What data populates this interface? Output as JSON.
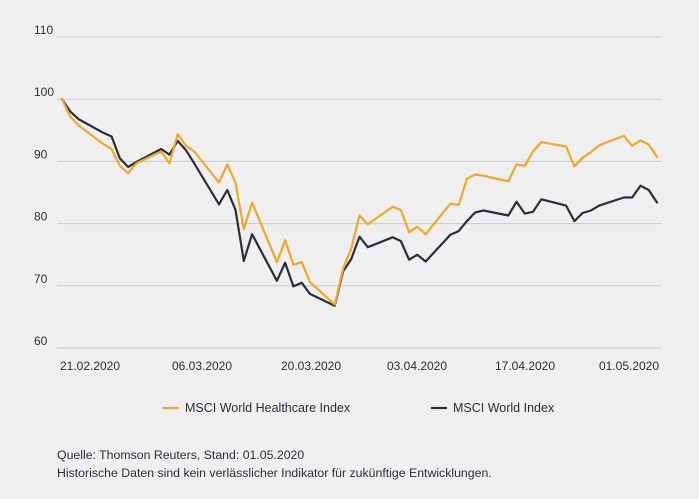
{
  "chart_data": {
    "type": "line",
    "title": "",
    "xlabel": "",
    "ylabel": "",
    "ylim": [
      60,
      110
    ],
    "yticks": [
      60,
      70,
      80,
      90,
      100,
      110
    ],
    "xticks": [
      "21.02.2020",
      "06.03.2020",
      "20.03.2020",
      "03.04.2020",
      "17.04.2020",
      "01.05.2020"
    ],
    "grid": "horizontal",
    "legend_position": "bottom",
    "x": [
      "2020-02-19",
      "2020-02-20",
      "2020-02-21",
      "2020-02-24",
      "2020-02-25",
      "2020-02-26",
      "2020-02-27",
      "2020-02-28",
      "2020-03-02",
      "2020-03-03",
      "2020-03-04",
      "2020-03-05",
      "2020-03-06",
      "2020-03-09",
      "2020-03-10",
      "2020-03-11",
      "2020-03-12",
      "2020-03-13",
      "2020-03-16",
      "2020-03-17",
      "2020-03-18",
      "2020-03-19",
      "2020-03-20",
      "2020-03-23",
      "2020-03-24",
      "2020-03-25",
      "2020-03-26",
      "2020-03-27",
      "2020-03-30",
      "2020-03-31",
      "2020-04-01",
      "2020-04-02",
      "2020-04-03",
      "2020-04-06",
      "2020-04-07",
      "2020-04-08",
      "2020-04-09",
      "2020-04-10",
      "2020-04-13",
      "2020-04-14",
      "2020-04-15",
      "2020-04-16",
      "2020-04-17",
      "2020-04-20",
      "2020-04-21",
      "2020-04-22",
      "2020-04-23",
      "2020-04-24",
      "2020-04-27",
      "2020-04-28",
      "2020-04-29",
      "2020-04-30",
      "2020-05-01"
    ],
    "series": [
      {
        "name": "MSCI World Healthcare Index",
        "color": "#f0a828",
        "values": [
          100,
          97.2,
          95.8,
          92.8,
          92.0,
          89.3,
          88.1,
          89.7,
          91.6,
          89.7,
          94.4,
          92.5,
          91.6,
          86.6,
          89.5,
          86.6,
          79.1,
          83.4,
          73.8,
          77.3,
          73.4,
          73.8,
          70.6,
          67.0,
          72.7,
          76.0,
          81.3,
          79.9,
          82.7,
          82.2,
          78.6,
          79.5,
          78.3,
          83.2,
          83.0,
          87.2,
          87.9,
          87.7,
          86.8,
          89.5,
          89.3,
          91.6,
          93.1,
          92.4,
          89.2,
          90.6,
          91.5,
          92.6,
          94.1,
          92.5,
          93.4,
          92.7,
          90.7
        ]
      },
      {
        "name": "MSCI World Index",
        "color": "#2b2d3b",
        "values": [
          100,
          98.0,
          96.8,
          94.6,
          94.0,
          90.5,
          89.1,
          89.9,
          92.0,
          91.1,
          93.3,
          91.8,
          89.7,
          83.1,
          85.4,
          82.2,
          74.0,
          78.3,
          70.8,
          73.7,
          69.9,
          70.5,
          68.7,
          66.8,
          72.3,
          74.3,
          77.9,
          76.2,
          77.8,
          77.2,
          74.2,
          75.0,
          73.9,
          78.2,
          78.8,
          80.4,
          81.8,
          82.1,
          81.3,
          83.5,
          81.6,
          81.9,
          83.9,
          82.9,
          80.4,
          81.7,
          82.1,
          82.9,
          84.2,
          84.2,
          86.1,
          85.4,
          83.4
        ]
      }
    ]
  },
  "footer": {
    "source": "Quelle: Thomson Reuters, Stand: 01.05.2020",
    "disclaimer": "Historische Daten sind kein verlässlicher Indikator für zukünftige Entwicklungen."
  }
}
